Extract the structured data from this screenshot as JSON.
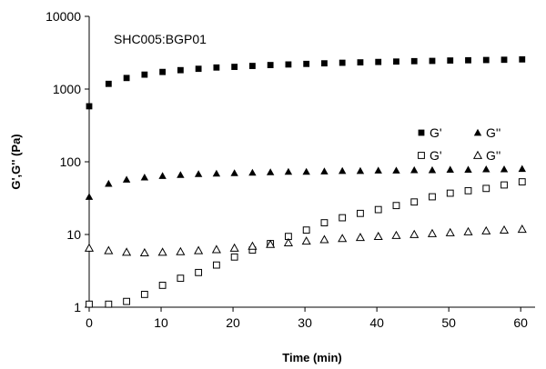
{
  "chart_data": {
    "type": "scatter",
    "title": "",
    "xlabel": "Time (min)",
    "ylabel": "G',G'' (Pa)",
    "yscale": "log",
    "xlim": [
      0,
      62
    ],
    "ylim": [
      1,
      10000
    ],
    "xticks": [
      "0",
      "10",
      "20",
      "30",
      "40",
      "50",
      "60"
    ],
    "yticks": [
      "1",
      "10",
      "100",
      "1000",
      "10000"
    ],
    "grid": false,
    "legend_position": "right",
    "annotation": "SHC005:BGP01",
    "series": [
      {
        "name": "G'",
        "marker": "filled-square",
        "x": [
          0,
          2.7,
          5.2,
          7.7,
          10.2,
          12.7,
          15.2,
          17.7,
          20.2,
          22.7,
          25.2,
          27.7,
          30.2,
          32.7,
          35.2,
          37.7,
          40.2,
          42.7,
          45.2,
          47.7,
          50.2,
          52.7,
          55.2,
          57.7,
          60.2
        ],
        "y": [
          580,
          1180,
          1420,
          1580,
          1720,
          1820,
          1900,
          1980,
          2020,
          2080,
          2140,
          2180,
          2220,
          2260,
          2300,
          2330,
          2360,
          2390,
          2420,
          2440,
          2470,
          2490,
          2510,
          2530,
          2560
        ]
      },
      {
        "name": "G''",
        "marker": "filled-triangle",
        "x": [
          0,
          2.7,
          5.2,
          7.7,
          10.2,
          12.7,
          15.2,
          17.7,
          20.2,
          22.7,
          25.2,
          27.7,
          30.2,
          32.7,
          35.2,
          37.7,
          40.2,
          42.7,
          45.2,
          47.7,
          50.2,
          52.7,
          55.2,
          57.7,
          60.2
        ],
        "y": [
          33,
          50,
          57,
          61,
          64,
          66,
          68,
          69,
          70,
          71,
          72,
          73,
          73,
          74,
          75,
          75,
          76,
          76,
          77,
          77,
          78,
          78,
          79,
          79,
          80
        ]
      },
      {
        "name": "G'",
        "marker": "open-square",
        "x": [
          0,
          2.7,
          5.2,
          7.7,
          10.2,
          12.7,
          15.2,
          17.7,
          20.2,
          22.7,
          25.2,
          27.7,
          30.2,
          32.7,
          35.2,
          37.7,
          40.2,
          42.7,
          45.2,
          47.7,
          50.2,
          52.7,
          55.2,
          57.7,
          60.2
        ],
        "y": [
          1.1,
          1.1,
          1.2,
          1.5,
          2.0,
          2.5,
          3.0,
          3.8,
          4.9,
          6.1,
          7.5,
          9.4,
          11.5,
          14.5,
          17,
          19.5,
          22,
          25,
          28,
          33,
          37,
          40,
          43,
          48,
          53
        ]
      },
      {
        "name": "G''",
        "marker": "open-triangle",
        "x": [
          0,
          2.7,
          5.2,
          7.7,
          10.2,
          12.7,
          15.2,
          17.7,
          20.2,
          22.7,
          25.2,
          27.7,
          30.2,
          32.7,
          35.2,
          37.7,
          40.2,
          42.7,
          45.2,
          47.7,
          50.2,
          52.7,
          55.2,
          57.7,
          60.2
        ],
        "y": [
          6.5,
          6.0,
          5.7,
          5.6,
          5.7,
          5.8,
          6.0,
          6.2,
          6.5,
          6.9,
          7.3,
          7.7,
          8.1,
          8.5,
          8.8,
          9.1,
          9.4,
          9.7,
          10.0,
          10.3,
          10.6,
          10.9,
          11.2,
          11.5,
          11.8
        ]
      }
    ]
  }
}
